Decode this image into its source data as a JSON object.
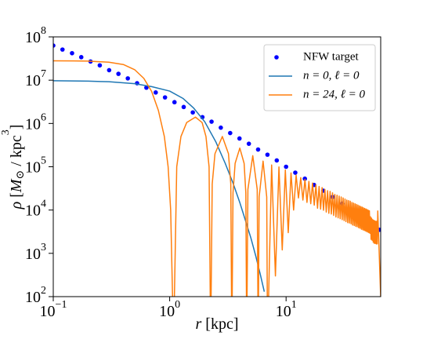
{
  "chart_data": {
    "type": "line",
    "xlabel": [
      {
        "text": "r",
        "style": "italic"
      },
      {
        "text": " [kpc]"
      }
    ],
    "ylabel": [
      {
        "text": "ρ",
        "style": "italic"
      },
      {
        "text": " ["
      },
      {
        "text": "M",
        "style": "italic"
      },
      {
        "text": "⊙",
        "shift": "sub"
      },
      {
        "text": " / kpc"
      },
      {
        "text": "3",
        "shift": "super"
      },
      {
        "text": "]"
      }
    ],
    "xscale": "log",
    "yscale": "log",
    "xlim": [
      0.1,
      65
    ],
    "ylim": [
      100,
      100000000
    ],
    "xticks": [
      {
        "value": 0.1,
        "label": "10",
        "exponent": "−1"
      },
      {
        "value": 1,
        "label": "10",
        "exponent": "0"
      },
      {
        "value": 10,
        "label": "10",
        "exponent": "1"
      }
    ],
    "yticks": [
      {
        "value": 100,
        "label": "10",
        "exponent": "2"
      },
      {
        "value": 1000,
        "label": "10",
        "exponent": "3"
      },
      {
        "value": 10000,
        "label": "10",
        "exponent": "4"
      },
      {
        "value": 100000,
        "label": "10",
        "exponent": "5"
      },
      {
        "value": 1000000,
        "label": "10",
        "exponent": "6"
      },
      {
        "value": 10000000,
        "label": "10",
        "exponent": "7"
      },
      {
        "value": 100000000,
        "label": "10",
        "exponent": "8"
      }
    ],
    "grid": false,
    "legend": "upper right",
    "series": [
      {
        "name": "NFW target",
        "color": "#0000ff",
        "style": "markers",
        "x": [
          0.1,
          0.12,
          0.145,
          0.174,
          0.209,
          0.251,
          0.302,
          0.363,
          0.437,
          0.525,
          0.631,
          0.759,
          0.912,
          1.1,
          1.32,
          1.58,
          1.91,
          2.29,
          2.75,
          3.31,
          3.98,
          4.79,
          5.75,
          6.92,
          8.32,
          10,
          12,
          14.5,
          17.4,
          20.9,
          25.1,
          30.2,
          36.3,
          43.7,
          52.5,
          63.1
        ],
        "values": [
          63000000,
          51000000,
          42000000,
          34000000,
          27000000,
          22000000,
          17000000,
          14000000,
          11000000,
          8500000,
          6700000,
          5200000,
          4000000,
          3100000,
          2400000,
          1800000,
          1400000,
          1100000,
          800000,
          600000,
          450000,
          340000,
          250000,
          190000,
          140000,
          100000,
          73000,
          53000,
          38000,
          28000,
          20000,
          14000,
          10000,
          7100,
          5000,
          3500
        ]
      },
      {
        "name": "n = 0, ℓ = 0",
        "color": "#1f77b4",
        "style": "line",
        "x": [
          0.1,
          0.2,
          0.3,
          0.5,
          0.7,
          1.0,
          1.3,
          1.6,
          2.0,
          2.5,
          3.0,
          3.5,
          4.0,
          4.5,
          5.0,
          5.5,
          6.0,
          6.5
        ],
        "values": [
          9700000,
          9500000,
          9200000,
          8300000,
          7100000,
          5600000,
          3800000,
          2300000,
          1100000,
          370000,
          120000,
          42000,
          15000,
          5500,
          2200,
          850,
          330,
          130
        ]
      },
      {
        "name": "n = 24, ℓ = 0",
        "color": "#ff7f0e",
        "style": "line",
        "x": [
          0.1,
          0.15,
          0.2,
          0.3,
          0.4,
          0.5,
          0.6,
          0.7,
          0.8,
          0.9,
          0.97,
          1.02,
          1.08,
          1.15,
          1.25,
          1.4,
          1.665,
          1.9,
          2.05,
          2.18,
          2.25,
          2.32,
          2.45,
          2.835,
          3.2,
          3.35,
          3.42,
          3.5,
          3.65,
          4.005,
          4.36,
          4.51,
          4.59,
          4.7,
          5.175,
          5.65,
          5.76,
          5.87,
          6.345,
          6.82,
          6.93,
          7.515,
          8.1,
          8.685,
          9.27,
          9.855,
          10.44,
          11.025,
          11.61,
          12.195,
          12.78,
          13.365,
          13.95,
          14.535,
          15.12,
          15.705,
          16.29,
          16.875,
          17.46,
          18.045,
          18.63,
          19.215,
          19.8,
          20.385,
          20.97,
          21.555,
          22.14,
          22.725,
          23.31,
          23.895,
          24.48,
          25.065,
          25.65,
          26.235,
          26.82,
          27.405,
          27.99,
          28.575,
          29.16,
          29.745,
          30.33,
          30.915,
          31.5,
          32.085,
          32.67,
          33.255,
          33.84,
          34.425,
          35.01,
          35.595,
          36.18,
          36.765,
          37.35,
          37.935,
          38.52,
          39.105,
          39.69,
          40.275,
          40.86,
          41.445,
          42.03,
          42.615,
          43.2,
          43.785,
          44.37,
          44.955,
          45.54,
          46.125,
          46.71,
          47.295,
          47.88,
          48.465,
          49.05,
          49.635,
          50.22,
          50.805,
          51.39,
          51.975,
          52.56,
          53.145,
          53.73,
          54.315,
          54.9,
          55.485,
          56.07,
          56.655,
          57.24,
          57.825,
          58.41,
          58.995,
          59.58,
          60.165,
          60.75,
          61.335,
          65
        ],
        "values": [
          28000000,
          27800000,
          27500000,
          26000000,
          23000000,
          17500000,
          11000000,
          5500000,
          2000000,
          500000,
          100000,
          10000,
          0,
          100000,
          500000,
          1050000,
          1400000,
          1050000,
          500000,
          100000,
          0,
          40000,
          200000,
          500000,
          200000,
          40000,
          0,
          25000,
          120000,
          270000,
          120000,
          25000,
          0,
          30000,
          180000,
          30000,
          0,
          20000,
          135000,
          20000,
          0,
          110000,
          300,
          99000,
          1200,
          84000,
          3000,
          72000,
          10000,
          64000,
          19000,
          56000,
          17000,
          51000,
          15000,
          46000,
          14000,
          42000,
          13000,
          38000,
          11000,
          35000,
          10500,
          33000,
          9900,
          30000,
          9000,
          28000,
          8400,
          27000,
          8100,
          25000,
          7500,
          23000,
          6900,
          22000,
          6600,
          21000,
          6300,
          20000,
          6000,
          19000,
          5700,
          18000,
          5400,
          17000,
          5100,
          16500,
          5000,
          16000,
          4800,
          15000,
          4500,
          14500,
          4400,
          14000,
          4200,
          13500,
          4100,
          13000,
          3900,
          12500,
          3800,
          12000,
          3600,
          11700,
          3500,
          11300,
          3400,
          10900,
          3300,
          10600,
          3200,
          10300,
          3100,
          9900,
          3000,
          9600,
          2900,
          7000,
          2100,
          6500,
          2000,
          6000,
          1800,
          5800,
          1700,
          5600,
          1700,
          5500,
          1650,
          5500,
          1650,
          9500,
          100
        ]
      }
    ]
  }
}
